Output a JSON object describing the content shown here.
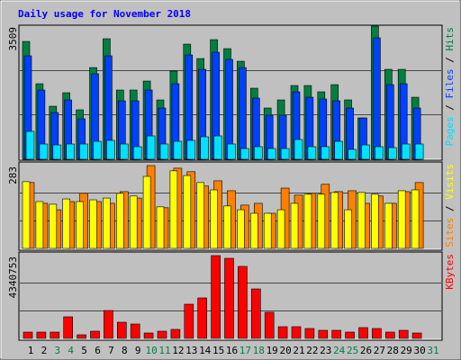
{
  "chart_data": [
    {
      "type": "bar",
      "title": "Daily usage for November 2018",
      "title_color": "#0000ff",
      "ylim": [
        0,
        3509
      ],
      "yticks": [
        3509
      ],
      "grid_divisions": 3,
      "legend_separator": " / ",
      "series": [
        {
          "name": "Hits",
          "color": "#008040",
          "values": [
            3105,
            1991,
            1398,
            1754,
            1304,
            2417,
            3176,
            1825,
            1825,
            2062,
            1564,
            2323,
            3034,
            2654,
            3152,
            2915,
            2583,
            1872,
            1351,
            1564,
            1943,
            1943,
            1778,
            1967,
            1564,
            1090,
            3509,
            2370,
            2370,
            1635,
            null
          ]
        },
        {
          "name": "Files",
          "color": "#0040ff",
          "values": [
            2726,
            1825,
            1232,
            1564,
            1067,
            2252,
            2726,
            1541,
            1541,
            1825,
            1351,
            1991,
            2749,
            2370,
            2820,
            2631,
            2417,
            1612,
            1161,
            1161,
            1778,
            1635,
            1588,
            1541,
            1351,
            1090,
            3200,
            1967,
            1991,
            1351,
            null
          ]
        },
        {
          "name": "Pages",
          "color": "#00e0ff",
          "values": [
            735,
            403,
            379,
            403,
            403,
            474,
            498,
            403,
            332,
            616,
            403,
            474,
            498,
            593,
            616,
            403,
            284,
            332,
            284,
            284,
            521,
            332,
            332,
            474,
            261,
            379,
            332,
            308,
            403,
            403,
            null
          ]
        }
      ]
    },
    {
      "type": "bar",
      "ylim": [
        0,
        283
      ],
      "yticks": [
        283
      ],
      "grid_divisions": 3,
      "legend_separator": " / ",
      "series": [
        {
          "name": "Visits",
          "color": "#ffff00",
          "values": [
            228,
            160,
            151,
            169,
            160,
            166,
            172,
            188,
            179,
            246,
            142,
            265,
            249,
            225,
            200,
            145,
            132,
            120,
            120,
            132,
            154,
            185,
            185,
            191,
            132,
            191,
            185,
            154,
            197,
            200,
            null
          ]
        },
        {
          "name": "Sites",
          "color": "#ff8000",
          "values": [
            225,
            154,
            132,
            160,
            188,
            160,
            154,
            194,
            172,
            283,
            139,
            274,
            262,
            213,
            231,
            197,
            148,
            154,
            120,
            206,
            182,
            188,
            219,
            194,
            197,
            154,
            179,
            154,
            194,
            225,
            null
          ]
        }
      ]
    },
    {
      "type": "bar",
      "ylim": [
        0,
        4340753
      ],
      "yticks": [
        4340753
      ],
      "grid_divisions": 3,
      "categories": [
        "1",
        "2",
        "3",
        "4",
        "5",
        "6",
        "7",
        "8",
        "9",
        "10",
        "11",
        "12",
        "13",
        "14",
        "15",
        "16",
        "17",
        "18",
        "19",
        "20",
        "21",
        "22",
        "23",
        "24",
        "25",
        "26",
        "27",
        "28",
        "29",
        "30",
        "31"
      ],
      "category_colors": [
        "#000",
        "#000",
        "#008040",
        "#008040",
        "#000",
        "#000",
        "#000",
        "#000",
        "#000",
        "#008040",
        "#008040",
        "#000",
        "#000",
        "#000",
        "#000",
        "#000",
        "#008040",
        "#008040",
        "#000",
        "#000",
        "#000",
        "#000",
        "#000",
        "#008040",
        "#008040",
        "#000",
        "#000",
        "#000",
        "#000",
        "#000",
        "#008040"
      ],
      "series": [
        {
          "name": "KBytes",
          "color": "#ff0000",
          "values": [
            330274,
            330274,
            330274,
            1132368,
            188728,
            377456,
            1462642,
            849276,
            754912,
            283092,
            377456,
            471820,
            1792916,
            2123190,
            4340753,
            4199198,
            3774560,
            2595010,
            1368278,
            613366,
            613366,
            519002,
            424638,
            424638,
            330274,
            566184,
            519002,
            330274,
            424638,
            283092,
            null
          ]
        }
      ]
    }
  ]
}
